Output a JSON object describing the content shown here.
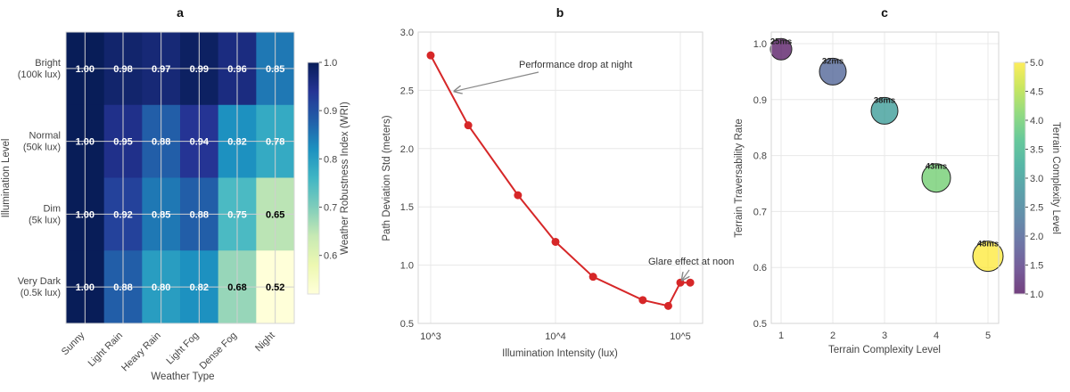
{
  "chart_data": [
    {
      "type": "heatmap",
      "title": "a",
      "xlabel": "Weather Type",
      "ylabel": "Illumination Level",
      "x_categories": [
        "Sunny",
        "Light Rain",
        "Heavy Rain",
        "Light Fog",
        "Dense Fog",
        "Night"
      ],
      "y_categories": [
        [
          "Bright",
          "(100k lux)"
        ],
        [
          "Normal",
          "(50k lux)"
        ],
        [
          "Dim",
          "(5k lux)"
        ],
        [
          "Very Dark",
          "(0.5k lux)"
        ]
      ],
      "values": [
        [
          1.0,
          0.98,
          0.97,
          0.99,
          0.96,
          0.85
        ],
        [
          1.0,
          0.95,
          0.88,
          0.94,
          0.82,
          0.78
        ],
        [
          1.0,
          0.92,
          0.85,
          0.88,
          0.75,
          0.65
        ],
        [
          1.0,
          0.88,
          0.8,
          0.82,
          0.68,
          0.52
        ]
      ],
      "colormap": "YlGnBu",
      "colorbar": {
        "label": "Weather Robustness Index (WRI)",
        "range": [
          0.52,
          1.0
        ],
        "ticks": [
          "0.6",
          "0.7",
          "0.8",
          "0.9",
          "1.0"
        ]
      }
    },
    {
      "type": "line",
      "title": "b",
      "xlabel": "Illumination Intensity (lux)",
      "ylabel": "Path Deviation Std (meters)",
      "x_scale": "log",
      "x_ticks": [
        "10^3",
        "10^4",
        "10^5"
      ],
      "y_ticks": [
        "0.5",
        "1.0",
        "1.5",
        "2.0",
        "2.5",
        "3.0"
      ],
      "ylim": [
        0.5,
        3.0
      ],
      "grid": true,
      "color": "#d62728",
      "x": [
        1000,
        2000,
        5000,
        10000,
        20000,
        50000,
        80000,
        100000,
        120000
      ],
      "y": [
        2.8,
        2.2,
        1.6,
        1.2,
        0.9,
        0.7,
        0.65,
        0.85,
        0.85
      ],
      "annotations": [
        {
          "text": "Performance drop at night",
          "x": 1500,
          "y": 2.5
        },
        {
          "text": "Glare effect at noon",
          "x": 100000,
          "y": 0.85
        }
      ]
    },
    {
      "type": "scatter",
      "title": "c",
      "xlabel": "Terrain Complexity Level",
      "ylabel": "Terrain Traversability Rate",
      "x_ticks": [
        "1",
        "2",
        "3",
        "4",
        "5"
      ],
      "y_ticks": [
        "0.5",
        "0.6",
        "0.7",
        "0.8",
        "0.9",
        "1.0"
      ],
      "ylim": [
        0.5,
        1.02
      ],
      "grid": true,
      "x": [
        1,
        2,
        3,
        4,
        5
      ],
      "y": [
        0.99,
        0.95,
        0.88,
        0.76,
        0.62
      ],
      "point_labels": [
        "25ms",
        "32ms",
        "38ms",
        "43ms",
        "48ms"
      ],
      "colormap": "viridis",
      "colorbar": {
        "label": "Terrain Complexity Level",
        "range": [
          1.0,
          5.0
        ],
        "ticks": [
          "1.0",
          "1.5",
          "2.0",
          "2.5",
          "3.0",
          "3.5",
          "4.0",
          "4.5",
          "5.0"
        ]
      }
    }
  ]
}
